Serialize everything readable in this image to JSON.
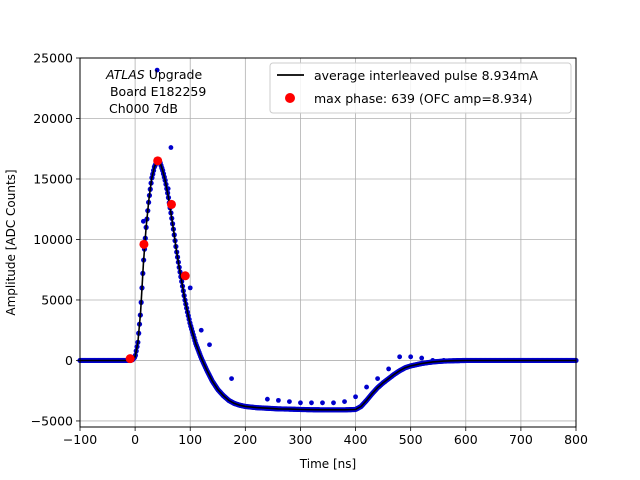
{
  "chart_data": {
    "type": "line",
    "xlabel": "Time [ns]",
    "ylabel": "Amplitude [ADC Counts]",
    "xlim": [
      -100,
      800
    ],
    "ylim": [
      -5500,
      25000
    ],
    "xticks": [
      -100,
      0,
      100,
      200,
      300,
      400,
      500,
      600,
      700,
      800
    ],
    "yticks": [
      -5000,
      0,
      5000,
      10000,
      15000,
      20000,
      25000
    ],
    "grid": true,
    "legend_position": "top-right",
    "annotation": {
      "line1_italic": "ATLAS",
      "line1_rest": " Upgrade",
      "line2": " Board E182259",
      "line3": "Ch000 7dB"
    },
    "series": [
      {
        "name": "average interleaved pulse 8.934mA",
        "kind": "line",
        "color": "#000000",
        "x": [
          -100,
          -20,
          -10,
          -5,
          0,
          5,
          10,
          15,
          20,
          25,
          30,
          35,
          40,
          45,
          50,
          55,
          60,
          65,
          70,
          75,
          80,
          85,
          90,
          95,
          100,
          110,
          120,
          130,
          140,
          150,
          160,
          170,
          180,
          190,
          200,
          220,
          240,
          260,
          280,
          300,
          320,
          340,
          360,
          380,
          400,
          410,
          420,
          430,
          440,
          450,
          460,
          470,
          480,
          490,
          500,
          520,
          540,
          560,
          580,
          600,
          620,
          650,
          700,
          800
        ],
        "y": [
          0,
          0,
          0,
          50,
          300,
          1500,
          4000,
          8000,
          11000,
          13300,
          15000,
          16000,
          16500,
          16400,
          15700,
          14800,
          13600,
          12200,
          10700,
          9100,
          7700,
          6400,
          5100,
          4000,
          3000,
          1400,
          200,
          -800,
          -1700,
          -2400,
          -2900,
          -3300,
          -3550,
          -3700,
          -3800,
          -3900,
          -3950,
          -4000,
          -4020,
          -4050,
          -4070,
          -4080,
          -4080,
          -4080,
          -4050,
          -3800,
          -3300,
          -2750,
          -2250,
          -1850,
          -1500,
          -1150,
          -850,
          -600,
          -450,
          -250,
          -120,
          -50,
          -20,
          0,
          0,
          0,
          0,
          0
        ]
      },
      {
        "name": "",
        "kind": "scatter",
        "color": "#0000cc",
        "x": [
          40,
          65,
          60,
          15,
          100,
          120,
          135,
          160,
          175,
          240,
          260,
          280,
          300,
          320,
          340,
          360,
          380,
          400,
          420,
          440,
          460,
          480,
          500,
          520,
          540,
          560
        ],
        "y": [
          24000,
          17600,
          14200,
          11500,
          6000,
          2500,
          1300,
          -2900,
          -1500,
          -3200,
          -3300,
          -3400,
          -3500,
          -3500,
          -3500,
          -3500,
          -3400,
          -3000,
          -2200,
          -1500,
          -700,
          300,
          300,
          200,
          0,
          0
        ]
      },
      {
        "name": "max phase: 639 (OFC amp=8.934)",
        "kind": "points",
        "color": "#ff0000",
        "x": [
          -9,
          16,
          41,
          66,
          91
        ],
        "y": [
          150,
          9600,
          16500,
          12900,
          7000
        ]
      }
    ]
  }
}
